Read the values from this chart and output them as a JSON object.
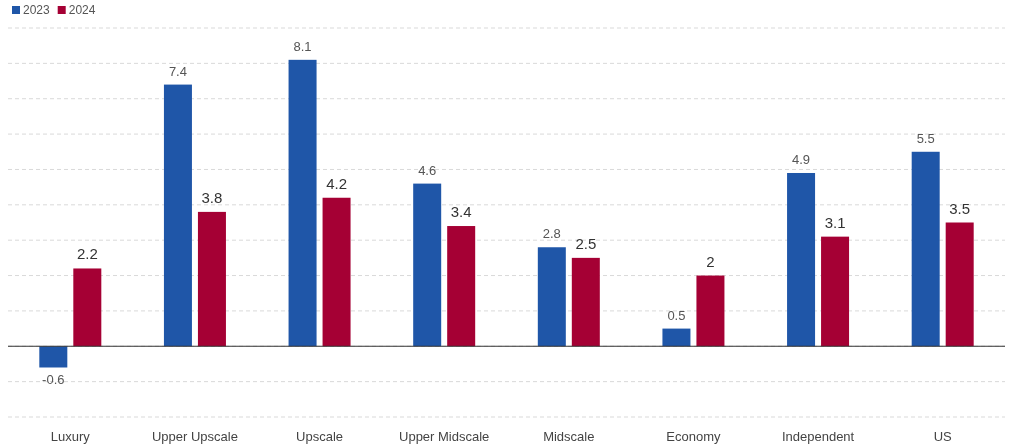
{
  "chart_data": {
    "type": "bar",
    "categories": [
      "Luxury",
      "Upper Upscale",
      "Upscale",
      "Upper Midscale",
      "Midscale",
      "Economy",
      "Independent",
      "US"
    ],
    "series": [
      {
        "name": "2023",
        "color": "#1f56a8",
        "values": [
          -0.6,
          7.4,
          8.1,
          4.6,
          2.8,
          0.5,
          4.9,
          5.5
        ]
      },
      {
        "name": "2024",
        "color": "#a50034",
        "values": [
          2.2,
          3.8,
          4.2,
          3.4,
          2.5,
          2,
          3.1,
          3.5
        ]
      }
    ],
    "ylim": [
      -2,
      9
    ],
    "yticks": [
      {
        "value": -2,
        "label": null
      },
      {
        "value": -1,
        "label": null
      },
      {
        "value": 0,
        "label": null
      },
      {
        "value": 1,
        "label": null
      },
      {
        "value": 2,
        "label": null
      },
      {
        "value": 3,
        "label": null
      },
      {
        "value": 4,
        "label": null
      },
      {
        "value": 5,
        "label": null
      },
      {
        "value": 6,
        "label": null
      },
      {
        "value": 7,
        "label": null
      },
      {
        "value": 8,
        "label": null
      },
      {
        "value": 9,
        "label": null
      }
    ],
    "tick_labels": "x",
    "grid": "y",
    "legend": "top left",
    "data_labels": true
  }
}
